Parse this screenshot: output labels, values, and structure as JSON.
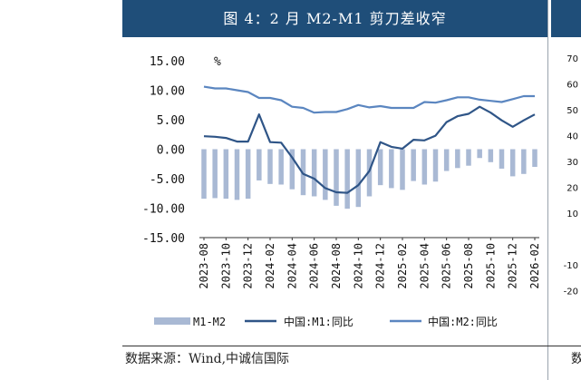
{
  "header": {
    "title": "图 4：2 月 M2-M1 剪刀差收窄"
  },
  "source": {
    "text": "数据来源：Wind,中诚信国际",
    "second_fragment": "数"
  },
  "colors": {
    "header_bg": "#1f4e79",
    "bar": "#a9b9d4",
    "m1": "#2f5587",
    "m2": "#5b86c0"
  },
  "chart_data": {
    "type": "bar+line",
    "title": "图 4：2 月 M2-M1 剪刀差收窄",
    "ylabel": "%",
    "ylim": [
      -15,
      15
    ],
    "yticks": [
      "15.00",
      "10.00",
      "5.00",
      "0.00",
      "-5.00",
      "-10.00",
      "-15.00"
    ],
    "xtick_labels": [
      "2023-08",
      "2023-10",
      "2023-12",
      "2024-02",
      "2024-04",
      "2024-06",
      "2024-08",
      "2024-10",
      "2024-12",
      "2025-02",
      "2025-04",
      "2025-06",
      "2025-08",
      "2025-10",
      "2025-12",
      "2026-02"
    ],
    "x": [
      "2023-08",
      "2023-09",
      "2023-10",
      "2023-11",
      "2023-12",
      "2024-01",
      "2024-02",
      "2024-03",
      "2024-04",
      "2024-05",
      "2024-06",
      "2024-07",
      "2024-08",
      "2024-09",
      "2024-10",
      "2024-11",
      "2024-12",
      "2025-01",
      "2025-02",
      "2025-03",
      "2025-04",
      "2025-05",
      "2025-06",
      "2025-07",
      "2025-08",
      "2025-09",
      "2025-10",
      "2025-11",
      "2025-12",
      "2026-01",
      "2026-02"
    ],
    "series": [
      {
        "name": "M1-M2",
        "type": "bar",
        "values": [
          -8.4,
          -8.3,
          -8.4,
          -8.6,
          -8.4,
          -5.3,
          -5.9,
          -6.0,
          -6.8,
          -7.8,
          -8.0,
          -8.6,
          -9.6,
          -10.1,
          -9.8,
          -8.0,
          -6.1,
          -6.6,
          -6.9,
          -5.4,
          -6.0,
          -5.5,
          -3.7,
          -3.2,
          -2.8,
          -1.5,
          -2.2,
          -3.3,
          -4.6,
          -4.2,
          -3.0
        ]
      },
      {
        "name": "中国:M1:同比",
        "type": "line",
        "values": [
          2.2,
          2.1,
          1.9,
          1.3,
          1.3,
          5.9,
          1.2,
          1.1,
          -1.4,
          -4.2,
          -5.0,
          -6.6,
          -7.3,
          -7.4,
          -6.1,
          -3.7,
          1.2,
          0.4,
          0.1,
          1.6,
          1.5,
          2.3,
          4.6,
          5.6,
          6.0,
          7.2,
          6.2,
          4.9,
          3.8,
          4.9,
          5.9
        ]
      },
      {
        "name": "中国:M2:同比",
        "type": "line",
        "values": [
          10.6,
          10.3,
          10.3,
          10.0,
          9.7,
          8.7,
          8.7,
          8.3,
          7.2,
          7.0,
          6.2,
          6.3,
          6.3,
          6.8,
          7.5,
          7.1,
          7.3,
          7.0,
          7.0,
          7.0,
          8.0,
          7.9,
          8.3,
          8.8,
          8.8,
          8.4,
          8.2,
          8.0,
          8.5,
          9.0,
          9.0
        ]
      }
    ],
    "legend_position": "bottom",
    "legend": [
      "M1-M2",
      "中国:M1:同比",
      "中国:M2:同比"
    ]
  },
  "right_chart": {
    "yticks": [
      "70",
      "60",
      "50",
      "40",
      "30",
      "20",
      "10",
      "",
      "-10",
      "-20"
    ]
  }
}
